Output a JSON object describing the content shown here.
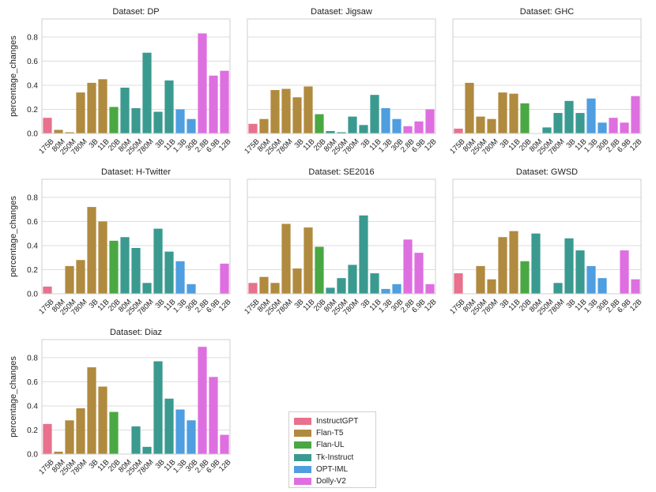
{
  "chart_data": {
    "type": "bar",
    "ylabel": "percentage_changes",
    "ylim": [
      0,
      0.95
    ],
    "yticks": [
      0.0,
      0.2,
      0.4,
      0.6,
      0.8
    ],
    "ytick_labels": [
      "0.0",
      "0.2",
      "0.4",
      "0.6",
      "0.8"
    ],
    "categories": [
      "175B",
      "80M",
      "250M",
      "780M",
      "3B",
      "11B",
      "20B",
      "80M",
      "250M",
      "780M",
      "3B",
      "11B",
      "1.3B",
      "30B",
      "2.8B",
      "6.9B",
      "12B"
    ],
    "category_model": [
      "InstructGPT",
      "Flan-T5",
      "Flan-T5",
      "Flan-T5",
      "Flan-T5",
      "Flan-T5",
      "Flan-UL",
      "Tk-Instruct",
      "Tk-Instruct",
      "Tk-Instruct",
      "Tk-Instruct",
      "Tk-Instruct",
      "OPT-IML",
      "OPT-IML",
      "Dolly-V2",
      "Dolly-V2",
      "Dolly-V2"
    ],
    "models": [
      {
        "name": "InstructGPT",
        "color": "#e8718d"
      },
      {
        "name": "Flan-T5",
        "color": "#b08a3e"
      },
      {
        "name": "Flan-UL",
        "color": "#4aa843"
      },
      {
        "name": "Tk-Instruct",
        "color": "#3a9a90"
      },
      {
        "name": "OPT-IML",
        "color": "#4e9ee0"
      },
      {
        "name": "Dolly-V2",
        "color": "#de6fe0"
      }
    ],
    "panels": [
      {
        "title": "Dataset: DP",
        "values": [
          0.13,
          0.03,
          0.01,
          0.34,
          0.42,
          0.45,
          0.22,
          0.38,
          0.21,
          0.67,
          0.18,
          0.44,
          0.2,
          0.12,
          0.83,
          0.48,
          0.52
        ]
      },
      {
        "title": "Dataset: Jigsaw",
        "values": [
          0.08,
          0.12,
          0.36,
          0.37,
          0.3,
          0.39,
          0.16,
          0.02,
          0.01,
          0.14,
          0.07,
          0.32,
          0.21,
          0.12,
          0.06,
          0.1,
          0.2
        ]
      },
      {
        "title": "Dataset: GHC",
        "values": [
          0.04,
          0.42,
          0.14,
          0.12,
          0.34,
          0.33,
          0.25,
          0.0,
          0.05,
          0.17,
          0.27,
          0.17,
          0.29,
          0.09,
          0.13,
          0.09,
          0.31
        ]
      },
      {
        "title": "Dataset: H-Twitter",
        "values": [
          0.06,
          0.0,
          0.23,
          0.28,
          0.72,
          0.6,
          0.44,
          0.47,
          0.38,
          0.09,
          0.54,
          0.35,
          0.27,
          0.08,
          0.0,
          0.0,
          0.25
        ]
      },
      {
        "title": "Dataset: SE2016",
        "values": [
          0.09,
          0.14,
          0.09,
          0.58,
          0.21,
          0.55,
          0.39,
          0.05,
          0.13,
          0.24,
          0.65,
          0.17,
          0.04,
          0.08,
          0.45,
          0.34,
          0.08
        ]
      },
      {
        "title": "Dataset: GWSD",
        "values": [
          0.17,
          0.0,
          0.23,
          0.12,
          0.47,
          0.52,
          0.27,
          0.5,
          0.0,
          0.09,
          0.46,
          0.36,
          0.23,
          0.13,
          0.0,
          0.36,
          0.12
        ]
      },
      {
        "title": "Dataset: Diaz",
        "values": [
          0.25,
          0.02,
          0.28,
          0.38,
          0.72,
          0.56,
          0.35,
          0.0,
          0.23,
          0.06,
          0.77,
          0.46,
          0.37,
          0.28,
          0.89,
          0.64,
          0.16
        ]
      }
    ],
    "legend": {
      "placement": "bottom-center",
      "entries": [
        "InstructGPT",
        "Flan-T5",
        "Flan-UL",
        "Tk-Instruct",
        "OPT-IML",
        "Dolly-V2"
      ]
    },
    "grid": "horizontal"
  }
}
